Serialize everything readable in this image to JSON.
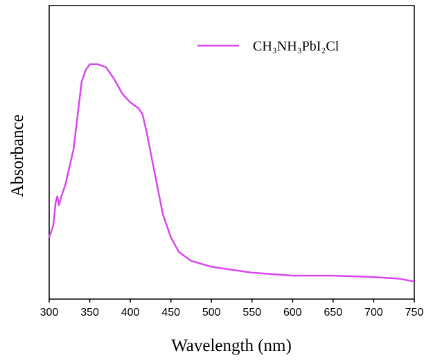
{
  "chart_data": {
    "type": "line",
    "xlabel": "Wavelength (nm)",
    "ylabel": "Absorbance",
    "x": [
      300,
      305,
      308,
      310,
      312,
      315,
      320,
      330,
      340,
      345,
      350,
      360,
      370,
      380,
      390,
      400,
      410,
      415,
      420,
      430,
      440,
      450,
      460,
      475,
      500,
      550,
      600,
      650,
      700,
      730,
      750
    ],
    "series": [
      {
        "name": "CH₃NH₃PbI₂Cl",
        "color": "#d946ef",
        "values": [
          0.21,
          0.25,
          0.33,
          0.35,
          0.32,
          0.35,
          0.39,
          0.51,
          0.74,
          0.78,
          0.8,
          0.8,
          0.79,
          0.75,
          0.7,
          0.67,
          0.65,
          0.63,
          0.57,
          0.43,
          0.29,
          0.21,
          0.16,
          0.13,
          0.11,
          0.09,
          0.08,
          0.08,
          0.075,
          0.07,
          0.06
        ]
      }
    ],
    "xlim": [
      300,
      750
    ],
    "xticks": [
      300,
      350,
      400,
      450,
      500,
      550,
      600,
      650,
      700,
      750
    ],
    "ylim": [
      0,
      1
    ]
  }
}
